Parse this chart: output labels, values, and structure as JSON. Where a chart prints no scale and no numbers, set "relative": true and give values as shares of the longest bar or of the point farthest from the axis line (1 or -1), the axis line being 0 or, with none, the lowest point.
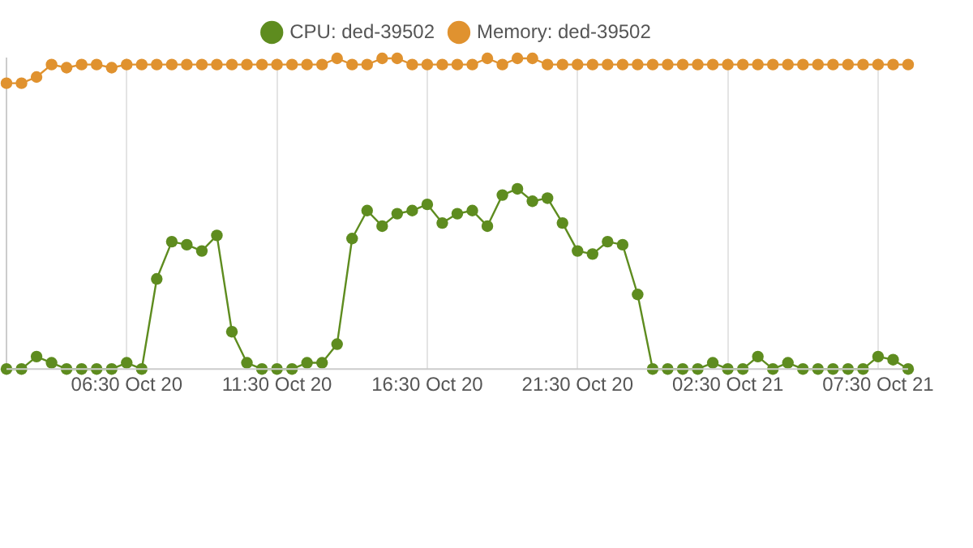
{
  "chart_data": {
    "type": "line",
    "relative": true,
    "legend": "top",
    "marker": "circle",
    "grid": "x",
    "categories": [
      null,
      null,
      null,
      null,
      null,
      null,
      null,
      null,
      "06:30 Oct 20",
      null,
      null,
      null,
      null,
      null,
      null,
      null,
      null,
      null,
      "11:30 Oct 20",
      null,
      null,
      null,
      null,
      null,
      null,
      null,
      null,
      null,
      "16:30 Oct 20",
      null,
      null,
      null,
      null,
      null,
      null,
      null,
      null,
      null,
      "21:30 Oct 20",
      null,
      null,
      null,
      null,
      null,
      null,
      null,
      null,
      null,
      "02:30 Oct 21",
      null,
      null,
      null,
      null,
      null,
      null,
      null,
      null,
      null,
      "07:30 Oct 21",
      null,
      null
    ],
    "series": [
      {
        "name": "CPU: ded-39502",
        "color": "#5e8c1f",
        "values": [
          0,
          0,
          0.04,
          0.02,
          0,
          0,
          0,
          0,
          0.02,
          0,
          0.29,
          0.41,
          0.4,
          0.38,
          0.43,
          0.12,
          0.02,
          0,
          0,
          0,
          0.02,
          0.02,
          0.08,
          0.42,
          0.51,
          0.46,
          0.5,
          0.51,
          0.53,
          0.47,
          0.5,
          0.51,
          0.46,
          0.56,
          0.58,
          0.54,
          0.55,
          0.47,
          0.38,
          0.37,
          0.41,
          0.4,
          0.24,
          0,
          0,
          0,
          0,
          0.02,
          0,
          0,
          0.04,
          0,
          0.02,
          0,
          0,
          0,
          0,
          0,
          0.04,
          0.03,
          0
        ]
      },
      {
        "name": "Memory: ded-39502",
        "color": "#e0922f",
        "values": [
          0.92,
          0.92,
          0.94,
          0.98,
          0.97,
          0.98,
          0.98,
          0.97,
          0.98,
          0.98,
          0.98,
          0.98,
          0.98,
          0.98,
          0.98,
          0.98,
          0.98,
          0.98,
          0.98,
          0.98,
          0.98,
          0.98,
          1,
          0.98,
          0.98,
          1,
          1,
          0.98,
          0.98,
          0.98,
          0.98,
          0.98,
          1,
          0.98,
          1,
          1,
          0.98,
          0.98,
          0.98,
          0.98,
          0.98,
          0.98,
          0.98,
          0.98,
          0.98,
          0.98,
          0.98,
          0.98,
          0.98,
          0.98,
          0.98,
          0.98,
          0.98,
          0.98,
          0.98,
          0.98,
          0.98,
          0.98,
          0.98,
          0.98,
          0.98
        ]
      }
    ]
  }
}
